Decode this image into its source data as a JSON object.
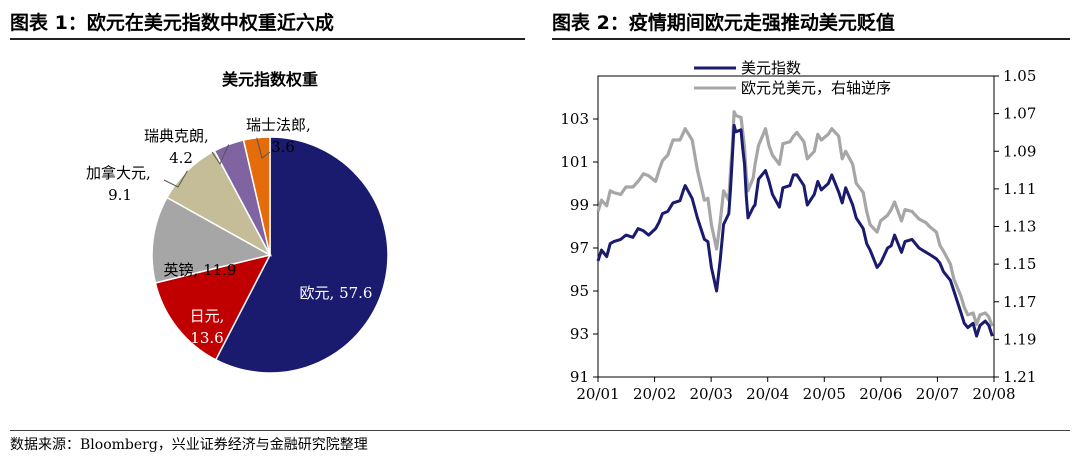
{
  "left_panel": {
    "title": "图表 1：欧元在美元指数中权重近六成"
  },
  "right_panel": {
    "title": "图表 2：疫情期间欧元走强推动美元贬值"
  },
  "source": "数据来源：Bloomberg，兴业证券经济与金融研究院整理",
  "chart_data": [
    {
      "type": "pie",
      "title": "美元指数权重",
      "slices": [
        {
          "label": "欧元",
          "value": 57.6,
          "color": "#1a1a6e"
        },
        {
          "label": "日元",
          "value": 13.6,
          "color": "#c00000"
        },
        {
          "label": "英镑",
          "value": 11.9,
          "color": "#a6a6a6"
        },
        {
          "label": "加拿大元",
          "value": 9.1,
          "color": "#c4bd97"
        },
        {
          "label": "瑞典克朗",
          "value": 4.2,
          "color": "#8064a2"
        },
        {
          "label": "瑞士法郎",
          "value": 3.6,
          "color": "#e46c0a"
        }
      ],
      "label_texts": [
        "欧元, 57.6",
        "日元,",
        "13.6",
        "英镑, 11.9",
        "加拿大元,",
        "9.1",
        "瑞典克朗,",
        "4.2",
        "瑞士法郎,",
        "3.6"
      ]
    },
    {
      "type": "line",
      "x_ticks": [
        "20/01",
        "20/02",
        "20/03",
        "20/04",
        "20/05",
        "20/06",
        "20/07",
        "20/08"
      ],
      "x_range": [
        "2020-01-01",
        "2020-08-15"
      ],
      "y_left": {
        "range": [
          91,
          105
        ],
        "ticks": [
          91,
          93,
          95,
          97,
          99,
          101,
          103
        ]
      },
      "y_right": {
        "range": [
          1.05,
          1.21
        ],
        "inverted": true,
        "ticks": [
          "1.05",
          "1.07",
          "1.09",
          "1.11",
          "1.13",
          "1.15",
          "1.17",
          "1.19",
          "1.21"
        ]
      },
      "legend_position": "top-left",
      "series": [
        {
          "name": "美元指数",
          "axis": "left",
          "color": "#1a1a6e",
          "points": [
            [
              "2020-01-01",
              96.4
            ],
            [
              "2020-01-03",
              96.9
            ],
            [
              "2020-01-06",
              96.6
            ],
            [
              "2020-01-08",
              97.2
            ],
            [
              "2020-01-10",
              97.3
            ],
            [
              "2020-01-14",
              97.4
            ],
            [
              "2020-01-17",
              97.6
            ],
            [
              "2020-01-21",
              97.5
            ],
            [
              "2020-01-24",
              97.9
            ],
            [
              "2020-01-27",
              97.8
            ],
            [
              "2020-01-30",
              97.6
            ],
            [
              "2020-02-03",
              97.9
            ],
            [
              "2020-02-05",
              98.2
            ],
            [
              "2020-02-07",
              98.6
            ],
            [
              "2020-02-10",
              98.7
            ],
            [
              "2020-02-13",
              99.1
            ],
            [
              "2020-02-17",
              99.2
            ],
            [
              "2020-02-19",
              99.7
            ],
            [
              "2020-02-20",
              99.9
            ],
            [
              "2020-02-24",
              99.3
            ],
            [
              "2020-02-27",
              98.4
            ],
            [
              "2020-03-02",
              97.4
            ],
            [
              "2020-03-04",
              97.3
            ],
            [
              "2020-03-06",
              96.1
            ],
            [
              "2020-03-09",
              95.0
            ],
            [
              "2020-03-11",
              96.4
            ],
            [
              "2020-03-13",
              98.1
            ],
            [
              "2020-03-16",
              98.6
            ],
            [
              "2020-03-17",
              99.8
            ],
            [
              "2020-03-18",
              101.2
            ],
            [
              "2020-03-19",
              102.7
            ],
            [
              "2020-03-20",
              102.4
            ],
            [
              "2020-03-23",
              102.5
            ],
            [
              "2020-03-24",
              101.6
            ],
            [
              "2020-03-25",
              100.9
            ],
            [
              "2020-03-26",
              99.4
            ],
            [
              "2020-03-27",
              98.4
            ],
            [
              "2020-03-30",
              98.9
            ],
            [
              "2020-03-31",
              99.0
            ],
            [
              "2020-04-02",
              100.2
            ],
            [
              "2020-04-06",
              100.6
            ],
            [
              "2020-04-08",
              100.1
            ],
            [
              "2020-04-10",
              99.5
            ],
            [
              "2020-04-14",
              98.9
            ],
            [
              "2020-04-16",
              99.8
            ],
            [
              "2020-04-20",
              99.9
            ],
            [
              "2020-04-22",
              100.4
            ],
            [
              "2020-04-24",
              100.4
            ],
            [
              "2020-04-28",
              99.9
            ],
            [
              "2020-04-30",
              99.0
            ],
            [
              "2020-05-04",
              99.5
            ],
            [
              "2020-05-06",
              100.1
            ],
            [
              "2020-05-08",
              99.7
            ],
            [
              "2020-05-12",
              100.0
            ],
            [
              "2020-05-14",
              100.4
            ],
            [
              "2020-05-18",
              99.6
            ],
            [
              "2020-05-20",
              99.1
            ],
            [
              "2020-05-22",
              99.8
            ],
            [
              "2020-05-26",
              99.0
            ],
            [
              "2020-05-28",
              98.4
            ],
            [
              "2020-06-01",
              97.9
            ],
            [
              "2020-06-03",
              97.2
            ],
            [
              "2020-06-05",
              96.9
            ],
            [
              "2020-06-09",
              96.1
            ],
            [
              "2020-06-11",
              96.3
            ],
            [
              "2020-06-15",
              97.0
            ],
            [
              "2020-06-17",
              97.1
            ],
            [
              "2020-06-19",
              97.6
            ],
            [
              "2020-06-23",
              96.8
            ],
            [
              "2020-06-25",
              97.3
            ],
            [
              "2020-06-29",
              97.4
            ],
            [
              "2020-07-01",
              97.2
            ],
            [
              "2020-07-03",
              97.0
            ],
            [
              "2020-07-07",
              96.8
            ],
            [
              "2020-07-09",
              96.7
            ],
            [
              "2020-07-13",
              96.5
            ],
            [
              "2020-07-15",
              96.3
            ],
            [
              "2020-07-17",
              95.9
            ],
            [
              "2020-07-21",
              95.5
            ],
            [
              "2020-07-23",
              95.0
            ],
            [
              "2020-07-27",
              94.0
            ],
            [
              "2020-07-29",
              93.5
            ],
            [
              "2020-07-31",
              93.3
            ],
            [
              "2020-08-03",
              93.5
            ],
            [
              "2020-08-05",
              92.9
            ],
            [
              "2020-08-07",
              93.4
            ],
            [
              "2020-08-10",
              93.6
            ],
            [
              "2020-08-12",
              93.4
            ],
            [
              "2020-08-14",
              92.9
            ]
          ]
        },
        {
          "name": "欧元兑美元，右轴逆序",
          "axis": "right",
          "color": "#a6a6a6",
          "points": [
            [
              "2020-01-01",
              1.122
            ],
            [
              "2020-01-03",
              1.116
            ],
            [
              "2020-01-06",
              1.119
            ],
            [
              "2020-01-08",
              1.111
            ],
            [
              "2020-01-10",
              1.112
            ],
            [
              "2020-01-14",
              1.113
            ],
            [
              "2020-01-17",
              1.109
            ],
            [
              "2020-01-21",
              1.109
            ],
            [
              "2020-01-24",
              1.106
            ],
            [
              "2020-01-27",
              1.102
            ],
            [
              "2020-01-30",
              1.103
            ],
            [
              "2020-02-03",
              1.106
            ],
            [
              "2020-02-05",
              1.1
            ],
            [
              "2020-02-07",
              1.095
            ],
            [
              "2020-02-10",
              1.092
            ],
            [
              "2020-02-13",
              1.084
            ],
            [
              "2020-02-17",
              1.084
            ],
            [
              "2020-02-19",
              1.08
            ],
            [
              "2020-02-20",
              1.078
            ],
            [
              "2020-02-24",
              1.084
            ],
            [
              "2020-02-27",
              1.1
            ],
            [
              "2020-03-02",
              1.116
            ],
            [
              "2020-03-04",
              1.115
            ],
            [
              "2020-03-06",
              1.129
            ],
            [
              "2020-03-09",
              1.142
            ],
            [
              "2020-03-11",
              1.128
            ],
            [
              "2020-03-13",
              1.111
            ],
            [
              "2020-03-16",
              1.116
            ],
            [
              "2020-03-17",
              1.1
            ],
            [
              "2020-03-18",
              1.088
            ],
            [
              "2020-03-19",
              1.069
            ],
            [
              "2020-03-20",
              1.071
            ],
            [
              "2020-03-23",
              1.072
            ],
            [
              "2020-03-24",
              1.08
            ],
            [
              "2020-03-25",
              1.088
            ],
            [
              "2020-03-26",
              1.103
            ],
            [
              "2020-03-27",
              1.111
            ],
            [
              "2020-03-30",
              1.104
            ],
            [
              "2020-03-31",
              1.097
            ],
            [
              "2020-04-02",
              1.087
            ],
            [
              "2020-04-06",
              1.078
            ],
            [
              "2020-04-08",
              1.087
            ],
            [
              "2020-04-10",
              1.092
            ],
            [
              "2020-04-14",
              1.097
            ],
            [
              "2020-04-16",
              1.086
            ],
            [
              "2020-04-20",
              1.085
            ],
            [
              "2020-04-22",
              1.082
            ],
            [
              "2020-04-24",
              1.08
            ],
            [
              "2020-04-28",
              1.085
            ],
            [
              "2020-04-30",
              1.094
            ],
            [
              "2020-05-04",
              1.09
            ],
            [
              "2020-05-06",
              1.081
            ],
            [
              "2020-05-08",
              1.084
            ],
            [
              "2020-05-12",
              1.081
            ],
            [
              "2020-05-14",
              1.078
            ],
            [
              "2020-05-18",
              1.082
            ],
            [
              "2020-05-20",
              1.094
            ],
            [
              "2020-05-22",
              1.09
            ],
            [
              "2020-05-26",
              1.097
            ],
            [
              "2020-05-28",
              1.107
            ],
            [
              "2020-06-01",
              1.112
            ],
            [
              "2020-06-03",
              1.122
            ],
            [
              "2020-06-05",
              1.129
            ],
            [
              "2020-06-09",
              1.133
            ],
            [
              "2020-06-11",
              1.127
            ],
            [
              "2020-06-15",
              1.124
            ],
            [
              "2020-06-17",
              1.121
            ],
            [
              "2020-06-19",
              1.117
            ],
            [
              "2020-06-23",
              1.127
            ],
            [
              "2020-06-25",
              1.121
            ],
            [
              "2020-06-29",
              1.122
            ],
            [
              "2020-07-01",
              1.124
            ],
            [
              "2020-07-03",
              1.126
            ],
            [
              "2020-07-07",
              1.128
            ],
            [
              "2020-07-09",
              1.13
            ],
            [
              "2020-07-13",
              1.133
            ],
            [
              "2020-07-15",
              1.14
            ],
            [
              "2020-07-17",
              1.143
            ],
            [
              "2020-07-21",
              1.15
            ],
            [
              "2020-07-23",
              1.158
            ],
            [
              "2020-07-27",
              1.167
            ],
            [
              "2020-07-29",
              1.173
            ],
            [
              "2020-07-31",
              1.177
            ],
            [
              "2020-08-03",
              1.176
            ],
            [
              "2020-08-05",
              1.182
            ],
            [
              "2020-08-07",
              1.177
            ],
            [
              "2020-08-10",
              1.176
            ],
            [
              "2020-08-12",
              1.178
            ],
            [
              "2020-08-14",
              1.183
            ]
          ]
        }
      ]
    }
  ]
}
